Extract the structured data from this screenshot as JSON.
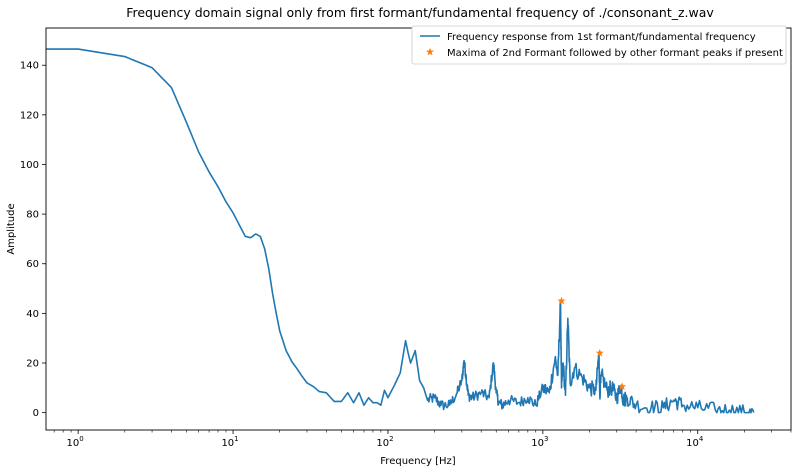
{
  "chart_data": {
    "type": "line",
    "title": "Frequency domain signal only from first formant/fundamental frequency of ./consonant_z.wav",
    "xlabel": "Frequency [Hz]",
    "ylabel": "Amplitude",
    "xscale": "log",
    "xlim": [
      0.62,
      40000
    ],
    "ylim": [
      -7,
      155
    ],
    "x_ticks": [
      {
        "value": 1,
        "base": "10",
        "exp": "0"
      },
      {
        "value": 10,
        "base": "10",
        "exp": "1"
      },
      {
        "value": 100,
        "base": "10",
        "exp": "2"
      },
      {
        "value": 1000,
        "base": "10",
        "exp": "3"
      },
      {
        "value": 10000,
        "base": "10",
        "exp": "4"
      }
    ],
    "y_ticks": [
      0,
      20,
      40,
      60,
      80,
      100,
      120,
      140
    ],
    "grid": false,
    "legend": {
      "position": "top-right",
      "entries": [
        {
          "label": "Frequency response from 1st formant/fundamental frequency",
          "marker": "line",
          "color": "#1f77b4"
        },
        {
          "label": "Maxima of 2nd Formant followed by other formant peaks if present",
          "marker": "star",
          "color": "#ff7f0e"
        }
      ]
    },
    "series": [
      {
        "name": "Frequency response from 1st formant/fundamental frequency",
        "color": "#1f77b4",
        "x": [
          0.5,
          1,
          2,
          3,
          4,
          5,
          6,
          7,
          8,
          9,
          10,
          11,
          12,
          13,
          14,
          15,
          16,
          17,
          18,
          19,
          20,
          22,
          24,
          26,
          28,
          30,
          33,
          36,
          40,
          45,
          50,
          55,
          60,
          65,
          70,
          75,
          80,
          85,
          90,
          95,
          100,
          110,
          120,
          130,
          135,
          140,
          150,
          160,
          170,
          180,
          200,
          220,
          250,
          280,
          300,
          310,
          320,
          330,
          350,
          400,
          450,
          480,
          500,
          520,
          550,
          600,
          700,
          800,
          900,
          1000,
          1100,
          1200,
          1250,
          1300,
          1320,
          1350,
          1400,
          1450,
          1500,
          1600,
          1800,
          2000,
          2200,
          2300,
          2330,
          2400,
          2600,
          2800,
          3000,
          3200,
          3300,
          3500,
          4000,
          5000,
          6000,
          7000,
          8000,
          10000,
          13000,
          16000,
          20000,
          23000
        ],
        "values": [
          146.5,
          146.5,
          143.5,
          139,
          131,
          117,
          105,
          97,
          91,
          85,
          80.5,
          75.5,
          71,
          70.5,
          72,
          71,
          66,
          58,
          48,
          40,
          33,
          25,
          20.5,
          17.5,
          14.5,
          12,
          10.5,
          8.5,
          8,
          4.5,
          4.5,
          8,
          4,
          8,
          3,
          6,
          4,
          4,
          3,
          9,
          6,
          11,
          16,
          29,
          24,
          20,
          25,
          13,
          10,
          5,
          6,
          3,
          3,
          8,
          13,
          21,
          14,
          7,
          6,
          8,
          6,
          20,
          8,
          4,
          3,
          5,
          4,
          6,
          3,
          10,
          8,
          22,
          15,
          45,
          10,
          20,
          7,
          38,
          12,
          18,
          14,
          10,
          9,
          24,
          8,
          15,
          9,
          10,
          6,
          11,
          5,
          6,
          3,
          2,
          2,
          5,
          3,
          2,
          1,
          1,
          0,
          0
        ]
      },
      {
        "name": "Maxima of 2nd Formant followed by other formant peaks if present",
        "type": "scatter",
        "marker": "star",
        "color": "#ff7f0e",
        "x": [
          1320,
          2330,
          3250
        ],
        "values": [
          45,
          24,
          10.5
        ]
      }
    ]
  }
}
